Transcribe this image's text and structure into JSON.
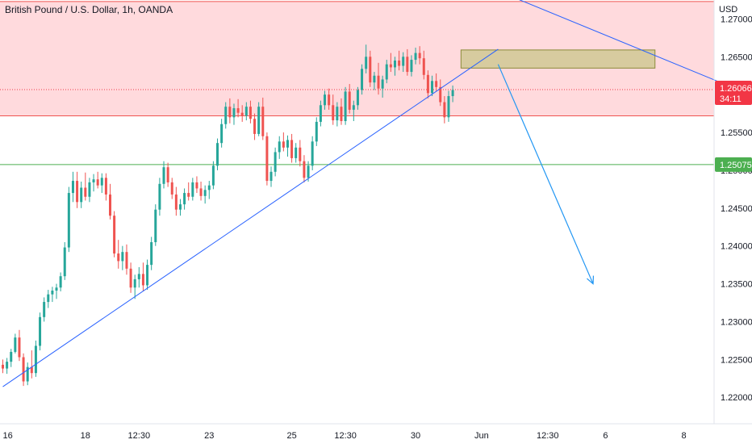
{
  "header": {
    "title": "British Pound / U.S. Dollar, 1h, OANDA",
    "currency": "USD"
  },
  "chart_data": {
    "type": "candlestick",
    "y_axis": {
      "range": [
        1.2165,
        1.2725
      ],
      "ticks": [
        "1.22000",
        "1.22500",
        "1.23000",
        "1.23500",
        "1.24000",
        "1.24500",
        "1.25000",
        "1.25500",
        "1.26000",
        "1.26500",
        "1.27000"
      ],
      "scale": "linear",
      "position": "right"
    },
    "x_axis": {
      "range": [
        0,
        173
      ],
      "ticks": [
        {
          "label": "16",
          "t": 0
        },
        {
          "label": "18",
          "t": 20
        },
        {
          "label": "12:30",
          "t": 33
        },
        {
          "label": "23",
          "t": 50
        },
        {
          "label": "25",
          "t": 70
        },
        {
          "label": "12:30",
          "t": 83
        },
        {
          "label": "30",
          "t": 100
        },
        {
          "label": "Jun",
          "t": 116
        },
        {
          "label": "12:30",
          "t": 132
        },
        {
          "label": "6",
          "t": 146
        },
        {
          "label": "8",
          "t": 165
        }
      ]
    },
    "grid": false,
    "current_price": {
      "value": 1.26066,
      "label": "1.26066",
      "countdown": "34:11",
      "color": "#f23645"
    },
    "level_label": {
      "value": 1.25075,
      "label": "1.25075",
      "color": "#4caf50"
    },
    "annotations": [
      {
        "kind": "zone",
        "y_top": 1.2723,
        "y_bottom": 1.2572,
        "fill": "#ffcdd2",
        "border": "#ef5350"
      },
      {
        "kind": "hline",
        "y": 1.25075,
        "color": "#4caf50"
      },
      {
        "kind": "rect",
        "x1": 111,
        "x2": 158,
        "y_top": 1.2659,
        "y_bottom": 1.2635,
        "fill": "#c9c58a",
        "border": "#8a8a3a"
      },
      {
        "kind": "trendline",
        "points": [
          [
            0,
            1.2214
          ],
          [
            120,
            1.266
          ]
        ],
        "color": "#2962ff"
      },
      {
        "kind": "trendline",
        "points": [
          [
            103,
            1.2775
          ],
          [
            173,
            1.2618
          ]
        ],
        "color": "#2962ff"
      },
      {
        "kind": "arrow",
        "points": [
          [
            120,
            1.264
          ],
          [
            143,
            1.235
          ]
        ],
        "color": "#2196f3"
      }
    ],
    "colors": {
      "up": "#26a69a",
      "down": "#ef5350",
      "wick_up": "#26a69a",
      "wick_down": "#ef5350"
    },
    "candles": [
      [
        1.2243,
        1.225,
        1.2232,
        1.2238
      ],
      [
        1.2238,
        1.2252,
        1.2231,
        1.2247
      ],
      [
        1.2247,
        1.2264,
        1.224,
        1.226
      ],
      [
        1.226,
        1.2284,
        1.2258,
        1.2279
      ],
      [
        1.2279,
        1.2289,
        1.2248,
        1.2253
      ],
      [
        1.2253,
        1.2258,
        1.2215,
        1.2221
      ],
      [
        1.2221,
        1.2246,
        1.2216,
        1.224
      ],
      [
        1.224,
        1.2262,
        1.2225,
        1.2232
      ],
      [
        1.2232,
        1.2275,
        1.2227,
        1.2268
      ],
      [
        1.2268,
        1.2312,
        1.2262,
        1.2306
      ],
      [
        1.2306,
        1.2332,
        1.23,
        1.2326
      ],
      [
        1.2326,
        1.2342,
        1.2318,
        1.2336
      ],
      [
        1.2336,
        1.2346,
        1.2326,
        1.2341
      ],
      [
        1.2341,
        1.235,
        1.233,
        1.2345
      ],
      [
        1.2345,
        1.2365,
        1.234,
        1.236
      ],
      [
        1.236,
        1.2405,
        1.2355,
        1.2398
      ],
      [
        1.2398,
        1.2478,
        1.2392,
        1.247
      ],
      [
        1.247,
        1.2498,
        1.2458,
        1.2486
      ],
      [
        1.2486,
        1.2498,
        1.245,
        1.2458
      ],
      [
        1.2458,
        1.2485,
        1.245,
        1.2477
      ],
      [
        1.2477,
        1.2497,
        1.246,
        1.2465
      ],
      [
        1.2465,
        1.249,
        1.2458,
        1.2484
      ],
      [
        1.2484,
        1.2495,
        1.2472,
        1.2488
      ],
      [
        1.2488,
        1.2498,
        1.2476,
        1.248
      ],
      [
        1.248,
        1.2496,
        1.247,
        1.249
      ],
      [
        1.249,
        1.2496,
        1.246,
        1.2468
      ],
      [
        1.2468,
        1.2482,
        1.2435,
        1.244
      ],
      [
        1.244,
        1.2446,
        1.2385,
        1.239
      ],
      [
        1.239,
        1.2408,
        1.237,
        1.238
      ],
      [
        1.238,
        1.24,
        1.2368,
        1.2392
      ],
      [
        1.2392,
        1.2402,
        1.2362,
        1.237
      ],
      [
        1.237,
        1.2378,
        1.2338,
        1.2345
      ],
      [
        1.2345,
        1.2362,
        1.233,
        1.2356
      ],
      [
        1.2356,
        1.2372,
        1.2345,
        1.2363
      ],
      [
        1.2363,
        1.2378,
        1.234,
        1.2348
      ],
      [
        1.2348,
        1.2382,
        1.2342,
        1.2375
      ],
      [
        1.2375,
        1.2412,
        1.2368,
        1.2405
      ],
      [
        1.2405,
        1.2455,
        1.24,
        1.2448
      ],
      [
        1.2448,
        1.249,
        1.244,
        1.2482
      ],
      [
        1.2482,
        1.2512,
        1.2476,
        1.2504
      ],
      [
        1.2504,
        1.251,
        1.2478,
        1.2484
      ],
      [
        1.2484,
        1.249,
        1.2462,
        1.2468
      ],
      [
        1.2468,
        1.2478,
        1.244,
        1.2448
      ],
      [
        1.2448,
        1.2462,
        1.244,
        1.2455
      ],
      [
        1.2455,
        1.2476,
        1.2448,
        1.247
      ],
      [
        1.247,
        1.2484,
        1.246,
        1.2465
      ],
      [
        1.2465,
        1.249,
        1.246,
        1.2484
      ],
      [
        1.2484,
        1.2492,
        1.247,
        1.2476
      ],
      [
        1.2476,
        1.2485,
        1.246,
        1.2466
      ],
      [
        1.2466,
        1.248,
        1.2456,
        1.2474
      ],
      [
        1.2474,
        1.2486,
        1.2462,
        1.248
      ],
      [
        1.248,
        1.2512,
        1.2475,
        1.2506
      ],
      [
        1.2506,
        1.2542,
        1.25,
        1.2536
      ],
      [
        1.2536,
        1.2568,
        1.253,
        1.2561
      ],
      [
        1.2561,
        1.259,
        1.2555,
        1.2584
      ],
      [
        1.2584,
        1.2595,
        1.2562,
        1.257
      ],
      [
        1.257,
        1.2588,
        1.256,
        1.2582
      ],
      [
        1.2582,
        1.2594,
        1.257,
        1.2576
      ],
      [
        1.2576,
        1.2586,
        1.2564,
        1.2572
      ],
      [
        1.2572,
        1.259,
        1.2566,
        1.2584
      ],
      [
        1.2584,
        1.2592,
        1.2562,
        1.2568
      ],
      [
        1.2568,
        1.2575,
        1.254,
        1.2548
      ],
      [
        1.2548,
        1.259,
        1.2545,
        1.2584
      ],
      [
        1.2584,
        1.2596,
        1.254,
        1.2545
      ],
      [
        1.2545,
        1.255,
        1.248,
        1.2486
      ],
      [
        1.2486,
        1.2505,
        1.2478,
        1.2498
      ],
      [
        1.2498,
        1.253,
        1.2492,
        1.2524
      ],
      [
        1.2524,
        1.2545,
        1.2515,
        1.2538
      ],
      [
        1.2538,
        1.255,
        1.2525,
        1.253
      ],
      [
        1.253,
        1.2546,
        1.2518,
        1.254
      ],
      [
        1.254,
        1.2548,
        1.251,
        1.2516
      ],
      [
        1.2516,
        1.2536,
        1.251,
        1.253
      ],
      [
        1.253,
        1.254,
        1.2505,
        1.2512
      ],
      [
        1.2512,
        1.252,
        1.2484,
        1.249
      ],
      [
        1.249,
        1.2512,
        1.2485,
        1.2506
      ],
      [
        1.2506,
        1.2545,
        1.25,
        1.2538
      ],
      [
        1.2538,
        1.257,
        1.2532,
        1.2564
      ],
      [
        1.2564,
        1.2592,
        1.2558,
        1.2586
      ],
      [
        1.2586,
        1.2605,
        1.258,
        1.26
      ],
      [
        1.26,
        1.2608,
        1.258,
        1.2586
      ],
      [
        1.2586,
        1.26,
        1.256,
        1.2566
      ],
      [
        1.2566,
        1.259,
        1.2558,
        1.2584
      ],
      [
        1.2584,
        1.2595,
        1.256,
        1.2565
      ],
      [
        1.2565,
        1.261,
        1.256,
        1.2604
      ],
      [
        1.2604,
        1.2614,
        1.2575,
        1.258
      ],
      [
        1.258,
        1.2592,
        1.2565,
        1.2586
      ],
      [
        1.2586,
        1.261,
        1.258,
        1.2606
      ],
      [
        1.2606,
        1.264,
        1.26,
        1.2634
      ],
      [
        1.2634,
        1.2666,
        1.2628,
        1.265
      ],
      [
        1.265,
        1.2658,
        1.261,
        1.2616
      ],
      [
        1.2616,
        1.263,
        1.2606,
        1.2625
      ],
      [
        1.2625,
        1.2642,
        1.26,
        1.2608
      ],
      [
        1.2608,
        1.2625,
        1.2596,
        1.262
      ],
      [
        1.262,
        1.2646,
        1.2615,
        1.264
      ],
      [
        1.264,
        1.2655,
        1.263,
        1.2636
      ],
      [
        1.2636,
        1.265,
        1.2625,
        1.2645
      ],
      [
        1.2645,
        1.2658,
        1.2632,
        1.2638
      ],
      [
        1.2638,
        1.2656,
        1.263,
        1.265
      ],
      [
        1.265,
        1.266,
        1.2625,
        1.263
      ],
      [
        1.263,
        1.2652,
        1.2624,
        1.2646
      ],
      [
        1.2646,
        1.2662,
        1.264,
        1.2655
      ],
      [
        1.2655,
        1.2664,
        1.264,
        1.2648
      ],
      [
        1.2648,
        1.2658,
        1.262,
        1.2626
      ],
      [
        1.2626,
        1.2632,
        1.2595,
        1.2602
      ],
      [
        1.2602,
        1.2625,
        1.2598,
        1.2618
      ],
      [
        1.2618,
        1.2628,
        1.2605,
        1.261
      ],
      [
        1.261,
        1.262,
        1.2585,
        1.259
      ],
      [
        1.259,
        1.2598,
        1.2562,
        1.257
      ],
      [
        1.257,
        1.2605,
        1.2564,
        1.2598
      ],
      [
        1.2598,
        1.2612,
        1.259,
        1.2606
      ]
    ]
  }
}
